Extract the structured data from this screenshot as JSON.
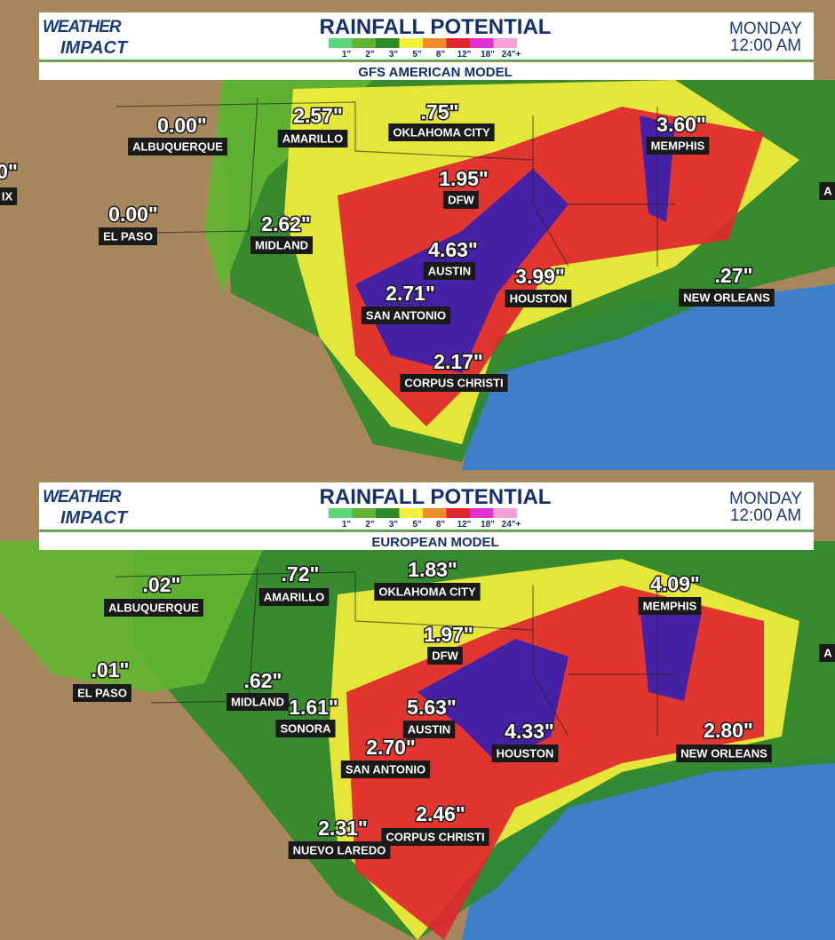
{
  "panels": [
    {
      "logo": {
        "line1": "WEATHER",
        "line2": "IMPACT"
      },
      "title": "RAINFALL POTENTIAL",
      "legend": [
        {
          "label": "1\"",
          "color": "#5cd67a"
        },
        {
          "label": "2\"",
          "color": "#62b432"
        },
        {
          "label": "3\"",
          "color": "#2f8a2a"
        },
        {
          "label": "5\"",
          "color": "#f4ee3c"
        },
        {
          "label": "8\"",
          "color": "#f08a2a"
        },
        {
          "label": "12\"",
          "color": "#e0272f"
        },
        {
          "label": "18\"",
          "color": "#e030d8"
        },
        {
          "label": "24\"+",
          "color": "#f6a0d8"
        }
      ],
      "day": "MONDAY",
      "time": "12:00 AM",
      "model": "GFS AMERICAN MODEL",
      "labels": [
        {
          "value": "0\"",
          "name": "IX"
        },
        {
          "value": "0.00\"",
          "name": "ALBUQUERQUE"
        },
        {
          "value": "2.57\"",
          "name": "AMARILLO"
        },
        {
          "value": ".75\"",
          "name": "OKLAHOMA CITY"
        },
        {
          "value": "3.60\"",
          "name": "MEMPHIS"
        },
        {
          "value": "1.95\"",
          "name": "DFW"
        },
        {
          "value": "0.00\"",
          "name": "EL PASO"
        },
        {
          "value": "2.62\"",
          "name": "MIDLAND"
        },
        {
          "value": "4.63\"",
          "name": "AUSTIN"
        },
        {
          "value": "3.99\"",
          "name": "HOUSTON"
        },
        {
          "value": ".27\"",
          "name": "NEW ORLEANS"
        },
        {
          "value": "2.71\"",
          "name": "SAN ANTONIO"
        },
        {
          "value": "2.17\"",
          "name": "CORPUS CHRISTI"
        },
        {
          "name": "A"
        }
      ]
    },
    {
      "logo": {
        "line1": "WEATHER",
        "line2": "IMPACT"
      },
      "title": "RAINFALL POTENTIAL",
      "legend": [
        {
          "label": "1\"",
          "color": "#5cd67a"
        },
        {
          "label": "2\"",
          "color": "#62b432"
        },
        {
          "label": "3\"",
          "color": "#2f8a2a"
        },
        {
          "label": "5\"",
          "color": "#f4ee3c"
        },
        {
          "label": "8\"",
          "color": "#f08a2a"
        },
        {
          "label": "12\"",
          "color": "#e0272f"
        },
        {
          "label": "18\"",
          "color": "#e030d8"
        },
        {
          "label": "24\"+",
          "color": "#f6a0d8"
        }
      ],
      "day": "MONDAY",
      "time": "12:00 AM",
      "model": "EUROPEAN MODEL",
      "labels": [
        {
          "value": ".02\"",
          "name": "ALBUQUERQUE"
        },
        {
          "value": ".72\"",
          "name": "AMARILLO"
        },
        {
          "value": "1.83\"",
          "name": "OKLAHOMA CITY"
        },
        {
          "value": "4.09\"",
          "name": "MEMPHIS"
        },
        {
          "value": "1.97\"",
          "name": "DFW"
        },
        {
          "value": ".01\"",
          "name": "EL PASO"
        },
        {
          "value": ".62\"",
          "name": "MIDLAND"
        },
        {
          "value": "1.61\"",
          "name": "SONORA"
        },
        {
          "value": "5.63\"",
          "name": "AUSTIN"
        },
        {
          "value": "4.33\"",
          "name": "HOUSTON"
        },
        {
          "value": "2.80\"",
          "name": "NEW ORLEANS"
        },
        {
          "value": "2.70\"",
          "name": "SAN ANTONIO"
        },
        {
          "value": "2.46\"",
          "name": "CORPUS CHRISTI"
        },
        {
          "value": "2.31\"",
          "name": "NUEVO LAREDO"
        },
        {
          "name": "A"
        }
      ]
    }
  ]
}
